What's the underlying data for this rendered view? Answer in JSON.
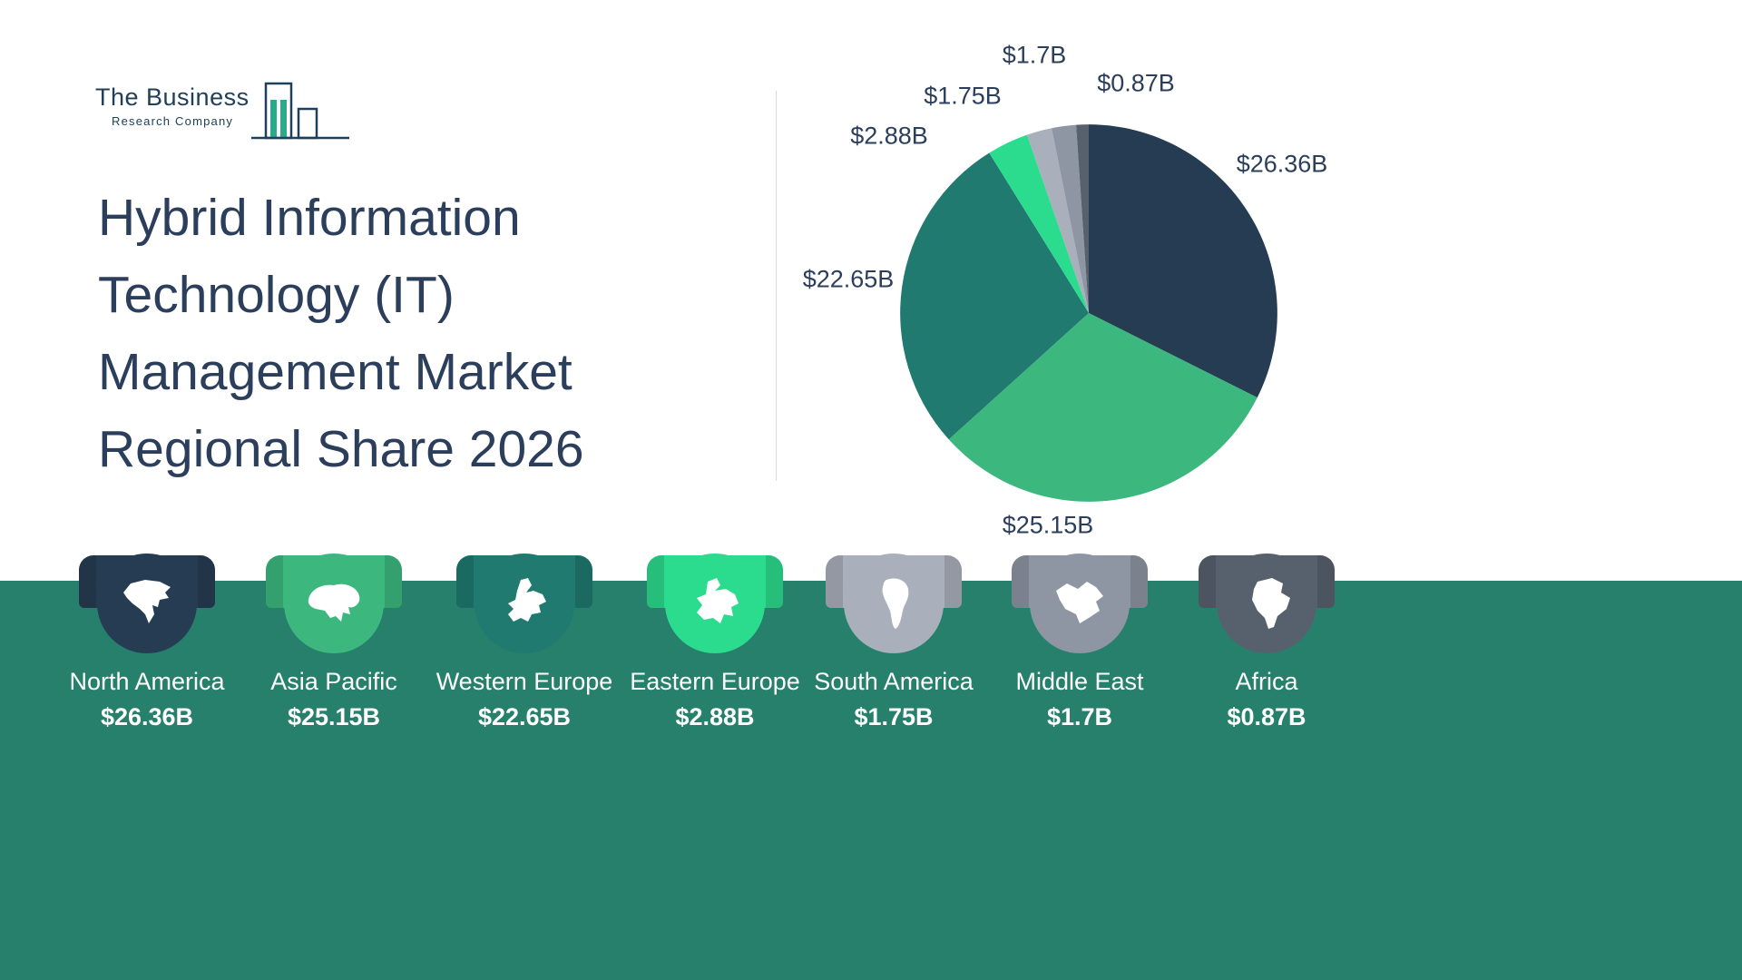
{
  "logo": {
    "name_line": "The Business",
    "sub_line": "Research Company"
  },
  "title": {
    "lines": [
      "Hybrid Information",
      "Technology (IT)",
      "Management Market",
      "Regional Share 2026"
    ]
  },
  "chart_data": {
    "type": "pie",
    "title": "Hybrid Information Technology (IT) Management Market Regional Share 2026",
    "legend_position": "bottom",
    "segments": [
      {
        "label": "North America",
        "value": 26.36,
        "display": "$26.36B",
        "color": "#263c53"
      },
      {
        "label": "Asia Pacific",
        "value": 25.15,
        "display": "$25.15B",
        "color": "#3cb87e"
      },
      {
        "label": "Western Europe",
        "value": 22.65,
        "display": "$22.65B",
        "color": "#207a70"
      },
      {
        "label": "Eastern Europe",
        "value": 2.88,
        "display": "$2.88B",
        "color": "#2bdc8e"
      },
      {
        "label": "South America",
        "value": 1.75,
        "display": "$1.75B",
        "color": "#a9afbb"
      },
      {
        "label": "Middle East",
        "value": 1.7,
        "display": "$1.7B",
        "color": "#8e96a3"
      },
      {
        "label": "Africa",
        "value": 0.87,
        "display": "$0.87B",
        "color": "#57616e"
      }
    ]
  },
  "colors": {
    "band": "#26806b",
    "title_text": "#2b3e5c",
    "pie_label_text": "#2b3e5c",
    "logo_navy": "#20405a",
    "logo_teal": "#2aa98b",
    "background": "#ffffff"
  }
}
